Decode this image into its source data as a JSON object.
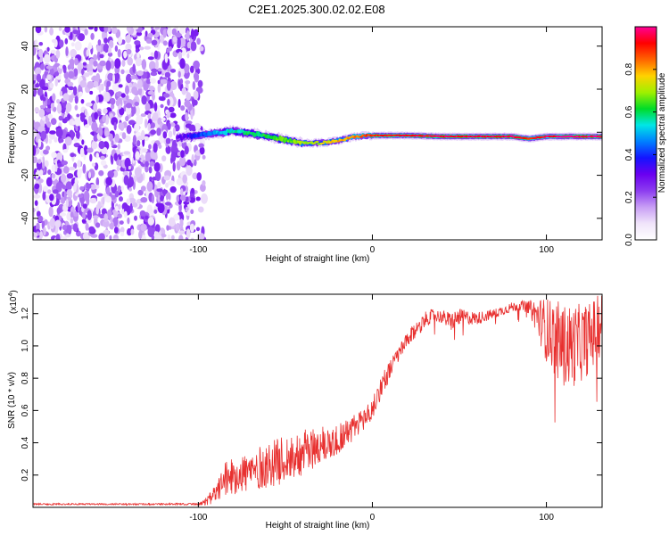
{
  "chart_data": [
    {
      "type": "heatmap",
      "title": "C2E1.2025.300.02.02.E08",
      "xlabel": "Height of straight line (km)",
      "ylabel": "Frequency (Hz)",
      "xlim": [
        -195,
        132
      ],
      "ylim": [
        -50,
        49
      ],
      "xticks": [
        -100,
        0,
        100
      ],
      "xtick_labels": [
        "-100",
        "0",
        "100"
      ],
      "yticks": [
        -40,
        -20,
        0,
        20,
        40
      ],
      "ytick_labels": [
        "-40",
        "-20",
        "0",
        "20",
        "40"
      ],
      "noise_region_x": [
        -195,
        -103
      ],
      "trace": {
        "x": [
          -112,
          -95,
          -80,
          -70,
          -60,
          -50,
          -40,
          -30,
          -20,
          -10,
          0,
          10,
          20,
          40,
          60,
          80,
          90,
          100,
          110,
          132
        ],
        "y": [
          -2.5,
          -1,
          0.5,
          -0.5,
          -2,
          -3.5,
          -5,
          -5,
          -4,
          -2,
          -1.5,
          -1.5,
          -1.5,
          -2,
          -2,
          -2,
          -3,
          -2,
          -2,
          -2
        ],
        "intensity": [
          0.3,
          0.45,
          0.55,
          0.6,
          0.62,
          0.65,
          0.7,
          0.72,
          0.78,
          0.82,
          0.9,
          0.92,
          0.92,
          0.95,
          0.96,
          0.97,
          0.9,
          0.95,
          0.98,
          0.98
        ]
      },
      "colorbar": {
        "label": "Normalized spectral amplitude",
        "range": [
          0.0,
          1.0
        ],
        "ticks": [
          "0.0",
          "0.2",
          "0.4",
          "0.6",
          "0.8"
        ],
        "tick_values": [
          0.0,
          0.2,
          0.4,
          0.6,
          0.8
        ],
        "colors": [
          "#ffffff",
          "#f0e4fa",
          "#c89ef5",
          "#8c3cf0",
          "#6a00f0",
          "#1414ff",
          "#0080ff",
          "#00e6e6",
          "#00dc28",
          "#a0f000",
          "#ffd200",
          "#ff6400",
          "#ff0000",
          "#ff0096"
        ]
      }
    },
    {
      "type": "line",
      "xlabel": "Height of straight line (km)",
      "ylabel": "SNR (10 * v/v)",
      "y_scale_label": "(x10",
      "y_scale_exp": "4",
      "y_scale_close": ")",
      "xlim": [
        -195,
        132
      ],
      "ylim": [
        0.0,
        1.32
      ],
      "xticks": [
        -100,
        0,
        100
      ],
      "xtick_labels": [
        "-100",
        "0",
        "100"
      ],
      "yticks": [
        0.2,
        0.4,
        0.6,
        0.8,
        1.0,
        1.2
      ],
      "ytick_labels": [
        "0.2",
        "0.4",
        "0.6",
        "0.8",
        "1.0",
        "1.2"
      ],
      "series": [
        {
          "name": "SNR",
          "color": "#e8302f",
          "x": [
            -195,
            -150,
            -100,
            -95,
            -90,
            -85,
            -80,
            -70,
            -60,
            -50,
            -40,
            -30,
            -20,
            -10,
            0,
            5,
            10,
            15,
            20,
            25,
            30,
            35,
            40,
            45,
            50,
            60,
            70,
            80,
            85,
            90,
            95,
            100,
            105,
            110,
            115,
            120,
            125,
            132
          ],
          "values": [
            0.02,
            0.02,
            0.02,
            0.04,
            0.08,
            0.17,
            0.2,
            0.22,
            0.26,
            0.3,
            0.34,
            0.38,
            0.42,
            0.5,
            0.6,
            0.75,
            0.85,
            0.95,
            1.03,
            1.1,
            1.16,
            1.19,
            1.18,
            1.15,
            1.18,
            1.17,
            1.2,
            1.24,
            1.25,
            1.24,
            1.18,
            1.1,
            1.05,
            1.0,
            1.0,
            1.02,
            1.05,
            1.15
          ],
          "noise_amplitude": [
            0.005,
            0.005,
            0.006,
            0.03,
            0.06,
            0.1,
            0.12,
            0.13,
            0.14,
            0.15,
            0.14,
            0.12,
            0.1,
            0.08,
            0.07,
            0.07,
            0.06,
            0.05,
            0.05,
            0.05,
            0.05,
            0.04,
            0.04,
            0.06,
            0.05,
            0.04,
            0.03,
            0.03,
            0.03,
            0.04,
            0.12,
            0.2,
            0.24,
            0.26,
            0.26,
            0.24,
            0.22,
            0.2
          ]
        }
      ]
    }
  ]
}
